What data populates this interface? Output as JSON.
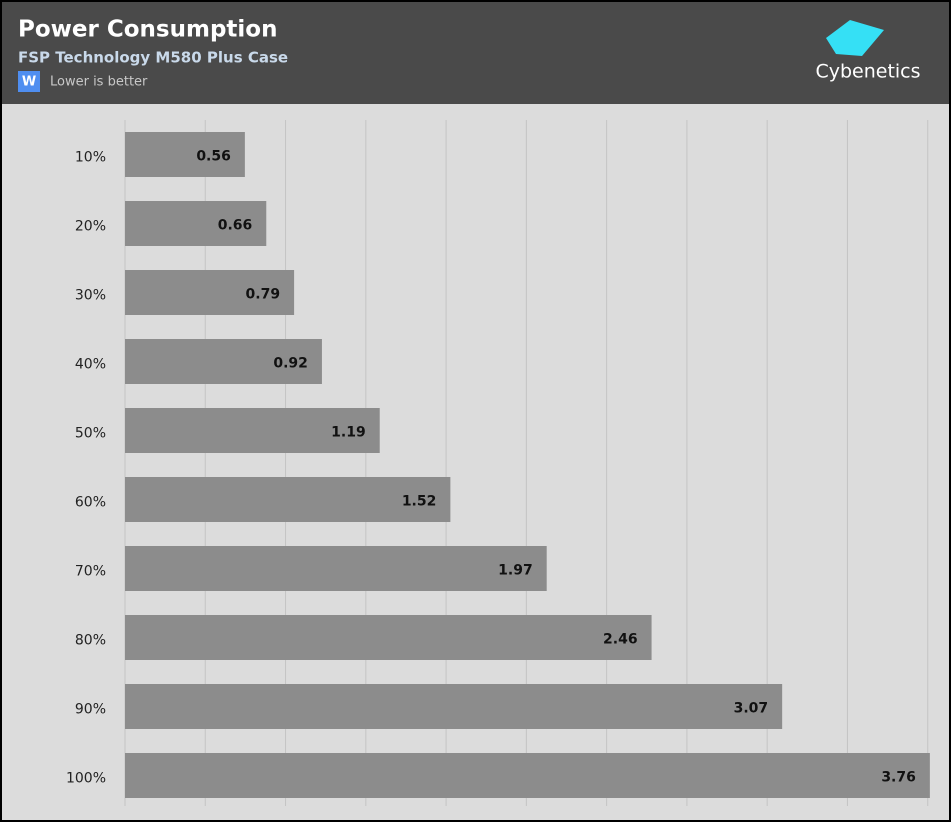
{
  "chart_data": {
    "type": "barh",
    "title": "Power Consumption",
    "subtitle": "FSP Technology M580 Plus Case",
    "unit_badge": "W",
    "note": "Lower is better",
    "logo": "Cybenetics",
    "categories": [
      "10%",
      "20%",
      "30%",
      "40%",
      "50%",
      "60%",
      "70%",
      "80%",
      "90%",
      "100%"
    ],
    "values": [
      0.56,
      0.66,
      0.79,
      0.92,
      1.19,
      1.52,
      1.97,
      2.46,
      3.07,
      3.76
    ],
    "color": "#8c8c8c",
    "xlim": [
      0,
      3.77
    ],
    "xticks": [
      0,
      0.375,
      0.75,
      1.125,
      1.5,
      1.875,
      2.25,
      2.625,
      3,
      3.375,
      3.75
    ],
    "grid": true
  }
}
